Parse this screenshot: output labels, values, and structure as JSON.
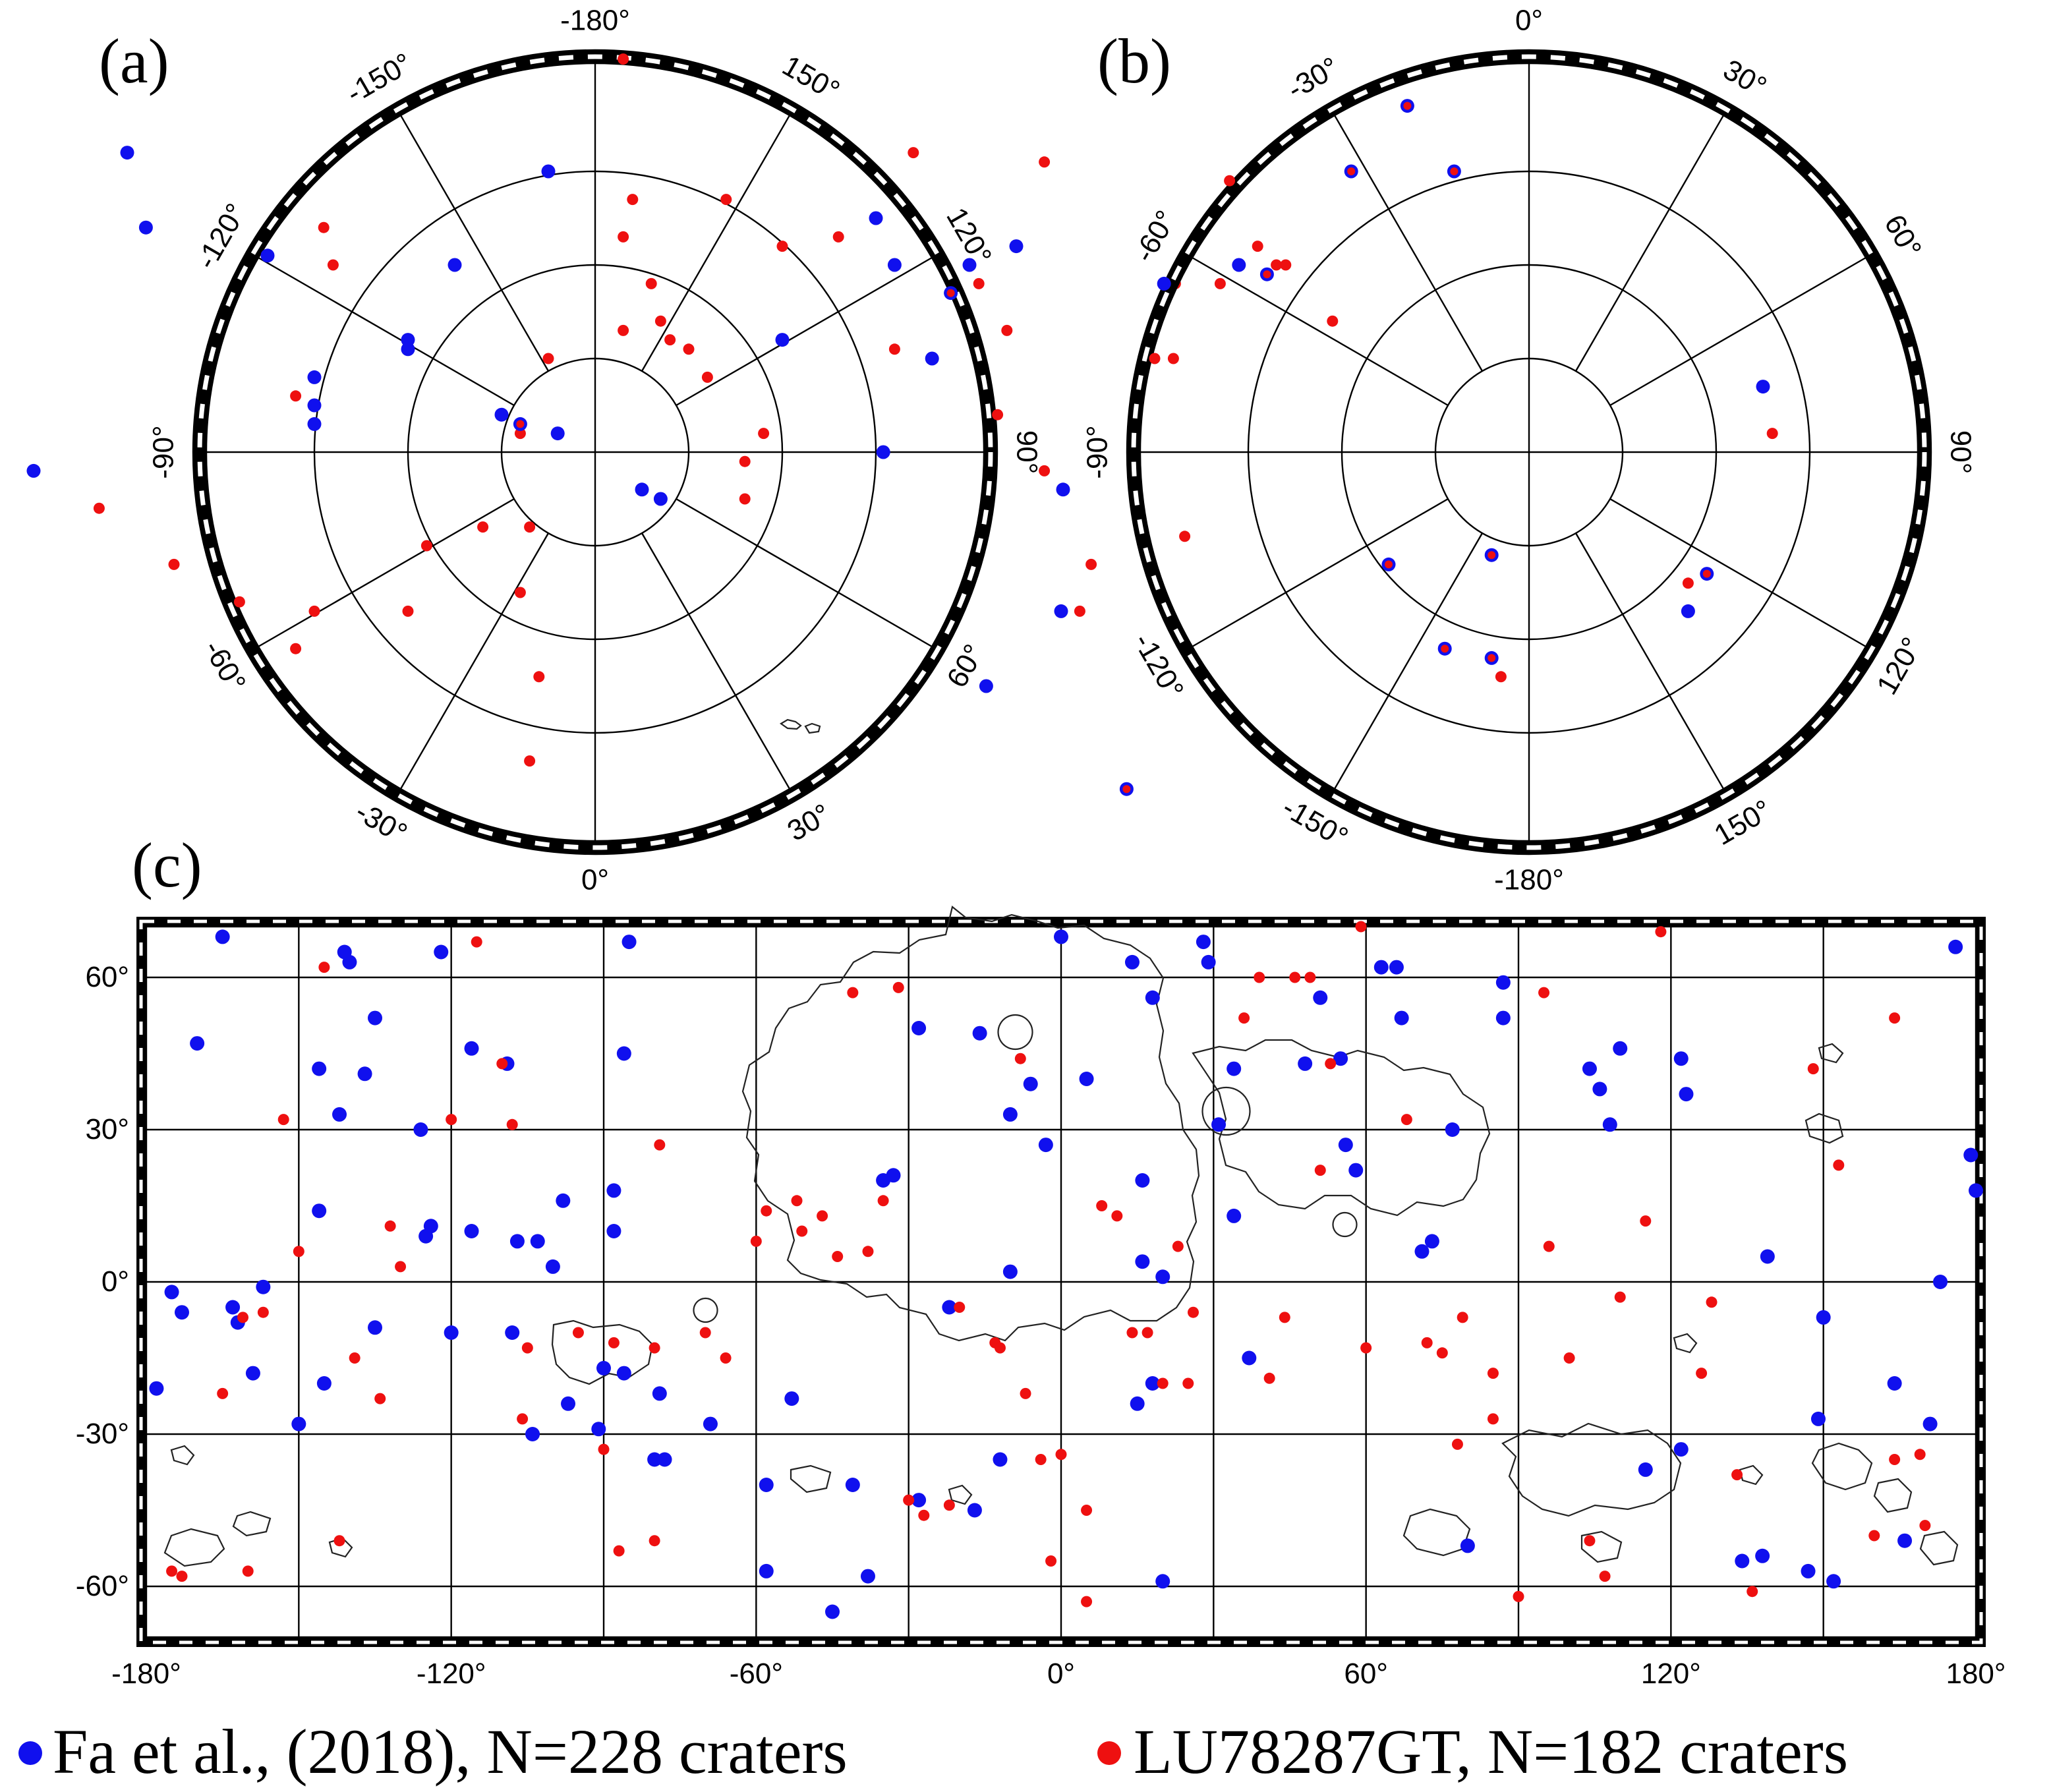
{
  "labels": {
    "a": "(a)",
    "b": "(b)",
    "c": "(c)"
  },
  "colors": {
    "fa": "#1010ee",
    "lu": "#ee1010"
  },
  "panel_a": {
    "ticks": [
      "-180°",
      "150°",
      "120°",
      "90°",
      "60°",
      "30°",
      "0°",
      "-30°",
      "-60°",
      "-90°",
      "-120°",
      "-150°"
    ],
    "fa": [
      [
        5,
        4
      ],
      [
        7,
        5
      ],
      [
        -8,
        -3
      ],
      [
        -4,
        -2
      ],
      [
        -10,
        -4
      ],
      [
        -30,
        -5
      ],
      [
        -20,
        -12
      ],
      [
        -30,
        -8
      ],
      [
        -15,
        -20
      ],
      [
        -48,
        -24
      ],
      [
        -50,
        -32
      ],
      [
        -5,
        -30
      ],
      [
        -30,
        -3
      ],
      [
        -20,
        -11
      ],
      [
        -35,
        -21
      ],
      [
        -60,
        2
      ],
      [
        40,
        -20
      ],
      [
        30,
        -25
      ],
      [
        36,
        -10
      ],
      [
        45,
        -22
      ],
      [
        20,
        -12
      ],
      [
        38,
        -17
      ],
      [
        32,
        -20
      ],
      [
        50,
        4
      ]
    ],
    "lu": [
      [
        3,
        -13
      ],
      [
        3,
        -23
      ],
      [
        3,
        -42
      ],
      [
        7,
        -14
      ],
      [
        12,
        -8
      ],
      [
        8,
        -12
      ],
      [
        6,
        -18
      ],
      [
        4,
        -27
      ],
      [
        -5,
        -10
      ],
      [
        -8,
        -2
      ],
      [
        -7,
        8
      ],
      [
        -12,
        8
      ],
      [
        -8,
        15
      ],
      [
        -28,
        -20
      ],
      [
        -32,
        -6
      ],
      [
        -45,
        12
      ],
      [
        -38,
        16
      ],
      [
        -53,
        6
      ],
      [
        -30,
        17
      ],
      [
        -32,
        21
      ],
      [
        -18,
        10
      ],
      [
        -20,
        17
      ],
      [
        -6,
        24
      ],
      [
        -7,
        33
      ],
      [
        -29,
        -24
      ],
      [
        16,
        5
      ],
      [
        16,
        1
      ],
      [
        10,
        -11
      ],
      [
        18,
        -2
      ],
      [
        26,
        -23
      ],
      [
        14,
        -27
      ],
      [
        20,
        -22
      ],
      [
        32,
        -11
      ],
      [
        38,
        -17
      ],
      [
        44,
        -13
      ],
      [
        41,
        -18
      ],
      [
        34,
        -32
      ],
      [
        48,
        -31
      ],
      [
        62,
        -18
      ],
      [
        43,
        -4
      ],
      [
        48,
        2
      ],
      [
        53,
        12
      ],
      [
        63,
        9
      ]
    ]
  },
  "panel_b": {
    "ticks": [
      "0°",
      "30°",
      "60°",
      "90°",
      "120°",
      "150°",
      "-180°",
      "-150°",
      "-120°",
      "-90°",
      "-60°",
      "-30°"
    ],
    "fa": [
      [
        -13,
        -37
      ],
      [
        -19,
        -30
      ],
      [
        -8,
        -30
      ],
      [
        -39,
        -18
      ],
      [
        -50,
        17
      ],
      [
        -43,
        36
      ],
      [
        -58,
        25
      ],
      [
        -69,
        0
      ],
      [
        -28,
        -19
      ],
      [
        -31,
        -20
      ],
      [
        -4,
        11
      ],
      [
        -15,
        12
      ],
      [
        -9,
        21
      ],
      [
        -4,
        22
      ],
      [
        17,
        17
      ],
      [
        19,
        13
      ],
      [
        25,
        -7
      ]
    ],
    "lu": [
      [
        -13,
        -37
      ],
      [
        -19,
        -30
      ],
      [
        -8,
        -30
      ],
      [
        -29,
        -22
      ],
      [
        -27,
        -20
      ],
      [
        -26,
        -20
      ],
      [
        -32,
        -29
      ],
      [
        -33,
        -18
      ],
      [
        -38,
        -10
      ],
      [
        -40,
        -10
      ],
      [
        -48,
        17
      ],
      [
        -43,
        36
      ],
      [
        -21,
        -14
      ],
      [
        -4,
        11
      ],
      [
        -15,
        12
      ],
      [
        -9,
        21
      ],
      [
        -3,
        24
      ],
      [
        -4,
        22
      ],
      [
        17,
        14
      ],
      [
        19,
        13
      ],
      [
        26,
        -2
      ]
    ]
  },
  "panel_c": {
    "xticks": [
      "-180°",
      "-120°",
      "-60°",
      "0°",
      "60°",
      "120°",
      "180°"
    ],
    "yticks": [
      "60°",
      "30°",
      "0°",
      "-30°",
      "-60°"
    ],
    "fa": [
      [
        -165,
        68
      ],
      [
        -170,
        47
      ],
      [
        -173,
        -6
      ],
      [
        -159,
        -18
      ],
      [
        -163,
        -5
      ],
      [
        -162,
        -8
      ],
      [
        -157,
        -1
      ],
      [
        -175,
        -2
      ],
      [
        -178,
        -21
      ],
      [
        -146,
        42
      ],
      [
        -146,
        14
      ],
      [
        -145,
        -20
      ],
      [
        -142,
        33
      ],
      [
        -141,
        65
      ],
      [
        -140,
        63
      ],
      [
        -137,
        41
      ],
      [
        -135,
        52
      ],
      [
        -126,
        30
      ],
      [
        -125,
        9
      ],
      [
        -124,
        11
      ],
      [
        -122,
        65
      ],
      [
        -116,
        46
      ],
      [
        -116,
        10
      ],
      [
        -120,
        -10
      ],
      [
        -109,
        43
      ],
      [
        -107,
        8
      ],
      [
        -108,
        -10
      ],
      [
        -104,
        -30
      ],
      [
        -103,
        8
      ],
      [
        -100,
        3
      ],
      [
        -97,
        -24
      ],
      [
        -98,
        16
      ],
      [
        -90,
        -17
      ],
      [
        -91,
        -29
      ],
      [
        -86,
        45
      ],
      [
        -85,
        67
      ],
      [
        -88,
        18
      ],
      [
        -88,
        10
      ],
      [
        -86,
        -18
      ],
      [
        -80,
        -35
      ],
      [
        -78,
        -35
      ],
      [
        -79,
        -22
      ],
      [
        -69,
        -28
      ],
      [
        -58,
        -57
      ],
      [
        -58,
        -40
      ],
      [
        -53,
        -23
      ],
      [
        -41,
        -40
      ],
      [
        -45,
        -65
      ],
      [
        -38,
        -58
      ],
      [
        -35,
        20
      ],
      [
        -33,
        21
      ],
      [
        -28,
        -43
      ],
      [
        -28,
        50
      ],
      [
        -22,
        -5
      ],
      [
        -17,
        -45
      ],
      [
        -16,
        49
      ],
      [
        -10,
        2
      ],
      [
        -12,
        -35
      ],
      [
        -10,
        33
      ],
      [
        -6,
        39
      ],
      [
        -3,
        27
      ],
      [
        0,
        68
      ],
      [
        5,
        40
      ],
      [
        14,
        63
      ],
      [
        16,
        20
      ],
      [
        18,
        56
      ],
      [
        16,
        4
      ],
      [
        18,
        -20
      ],
      [
        15,
        -24
      ],
      [
        20,
        1
      ],
      [
        20,
        -59
      ],
      [
        28,
        67
      ],
      [
        29,
        63
      ],
      [
        31,
        31
      ],
      [
        34,
        42
      ],
      [
        34,
        13
      ],
      [
        37,
        -15
      ],
      [
        48,
        43
      ],
      [
        51,
        56
      ],
      [
        55,
        44
      ],
      [
        56,
        27
      ],
      [
        58,
        22
      ],
      [
        63,
        62
      ],
      [
        66,
        62
      ],
      [
        67,
        52
      ],
      [
        71,
        6
      ],
      [
        73,
        8
      ],
      [
        77,
        30
      ],
      [
        80,
        -52
      ],
      [
        87,
        52
      ],
      [
        87,
        59
      ],
      [
        104,
        42
      ],
      [
        106,
        38
      ],
      [
        108,
        31
      ],
      [
        110,
        46
      ],
      [
        115,
        -37
      ],
      [
        122,
        -33
      ],
      [
        122,
        44
      ],
      [
        123,
        37
      ],
      [
        134,
        -55
      ],
      [
        138,
        -54
      ],
      [
        139,
        5
      ],
      [
        147,
        -57
      ],
      [
        149,
        -27
      ],
      [
        150,
        -7
      ],
      [
        152,
        -59
      ],
      [
        164,
        -20
      ],
      [
        166,
        -51
      ],
      [
        171,
        -28
      ],
      [
        173,
        0
      ],
      [
        176,
        66
      ],
      [
        179,
        25
      ],
      [
        180,
        18
      ],
      [
        -150,
        -28
      ],
      [
        -135,
        -9
      ]
    ],
    "lu": [
      [
        -157,
        -6
      ],
      [
        -161,
        -7
      ],
      [
        -165,
        -22
      ],
      [
        -153,
        32
      ],
      [
        -145,
        62
      ],
      [
        -150,
        6
      ],
      [
        -139,
        -15
      ],
      [
        -132,
        11
      ],
      [
        -130,
        3
      ],
      [
        -120,
        32
      ],
      [
        -115,
        67
      ],
      [
        -110,
        43
      ],
      [
        -108,
        31
      ],
      [
        -106,
        -27
      ],
      [
        -90,
        -33
      ],
      [
        -87,
        -53
      ],
      [
        -80,
        -51
      ],
      [
        -79,
        27
      ],
      [
        -70,
        -10
      ],
      [
        -66,
        -15
      ],
      [
        -60,
        8
      ],
      [
        -58,
        14
      ],
      [
        -52,
        16
      ],
      [
        -51,
        10
      ],
      [
        -47,
        13
      ],
      [
        -44,
        5
      ],
      [
        -41,
        57
      ],
      [
        -38,
        6
      ],
      [
        -35,
        16
      ],
      [
        -32,
        58
      ],
      [
        -30,
        -43
      ],
      [
        -22,
        -44
      ],
      [
        -13,
        -12
      ],
      [
        -8,
        44
      ],
      [
        -4,
        -35
      ],
      [
        -2,
        -55
      ],
      [
        5,
        -63
      ],
      [
        -7,
        -22
      ],
      [
        5,
        -45
      ],
      [
        8,
        15
      ],
      [
        14,
        -10
      ],
      [
        17,
        -10
      ],
      [
        23,
        7
      ],
      [
        25,
        -20
      ],
      [
        36,
        52
      ],
      [
        39,
        60
      ],
      [
        41,
        -19
      ],
      [
        46,
        60
      ],
      [
        49,
        60
      ],
      [
        51,
        22
      ],
      [
        53,
        43
      ],
      [
        59,
        70
      ],
      [
        60,
        -13
      ],
      [
        68,
        32
      ],
      [
        72,
        -12
      ],
      [
        75,
        -14
      ],
      [
        78,
        -32
      ],
      [
        79,
        -7
      ],
      [
        85,
        -27
      ],
      [
        85,
        -18
      ],
      [
        90,
        -62
      ],
      [
        95,
        57
      ],
      [
        96,
        7
      ],
      [
        100,
        -15
      ],
      [
        107,
        -58
      ],
      [
        110,
        -3
      ],
      [
        115,
        12
      ],
      [
        118,
        69
      ],
      [
        126,
        -18
      ],
      [
        136,
        -61
      ],
      [
        148,
        42
      ],
      [
        153,
        23
      ],
      [
        164,
        52
      ],
      [
        170,
        -48
      ],
      [
        -105,
        -13
      ],
      [
        -173,
        -58
      ],
      [
        -175,
        -57
      ],
      [
        -142,
        -51
      ],
      [
        -134,
        -23
      ],
      [
        -160,
        -57
      ],
      [
        -95,
        -10
      ],
      [
        -88,
        -12
      ],
      [
        -80,
        -13
      ],
      [
        -27,
        -46
      ],
      [
        -20,
        -5
      ],
      [
        -12,
        -13
      ],
      [
        0,
        -34
      ],
      [
        11,
        13
      ],
      [
        20,
        -20
      ],
      [
        26,
        -6
      ],
      [
        44,
        -7
      ],
      [
        104,
        -51
      ],
      [
        128,
        -4
      ],
      [
        133,
        -38
      ],
      [
        160,
        -50
      ],
      [
        169,
        -34
      ],
      [
        164,
        -35
      ]
    ]
  },
  "legend": {
    "fa_label": "Fa et al., (2018), N=228 craters",
    "lu_label": "LU78287GT, N=182 craters"
  }
}
